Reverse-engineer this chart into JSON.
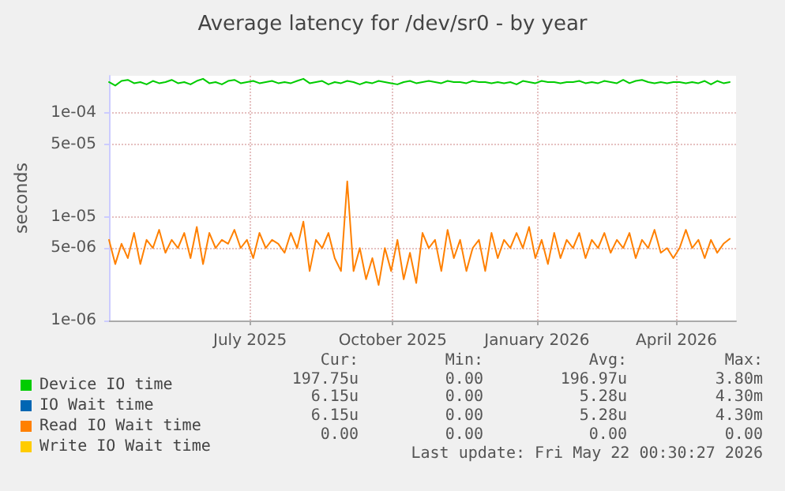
{
  "chart_data": {
    "type": "line",
    "title": "Average latency for /dev/sr0 - by year",
    "ylabel": "seconds",
    "log": "y",
    "grid": true,
    "legend": "bottom",
    "marker": "none",
    "line_style": "solid",
    "xlim": [
      "2025-04-17",
      "2026-05-22"
    ],
    "xticks": [
      {
        "value": "2025-07-16",
        "label": "July 2025"
      },
      {
        "value": "2025-10-15",
        "label": "October 2025"
      },
      {
        "value": "2026-01-15",
        "label": "January 2026"
      },
      {
        "value": "2026-04-14",
        "label": "April 2026"
      }
    ],
    "ylim": [
      1e-06,
      0.00023
    ],
    "yticks": [
      {
        "value": 1e-06,
        "label": "1e-06"
      },
      {
        "value": 5e-06,
        "label": "5e-06"
      },
      {
        "value": 1e-05,
        "label": "1e-05"
      },
      {
        "value": 5e-05,
        "label": "5e-05"
      },
      {
        "value": 0.0001,
        "label": "1e-04"
      }
    ],
    "x": [
      "2025-04-17",
      "2025-04-21",
      "2025-04-25",
      "2025-04-29",
      "2025-05-03",
      "2025-05-07",
      "2025-05-11",
      "2025-05-15",
      "2025-05-19",
      "2025-05-23",
      "2025-05-27",
      "2025-05-31",
      "2025-06-04",
      "2025-06-08",
      "2025-06-12",
      "2025-06-16",
      "2025-06-20",
      "2025-06-24",
      "2025-06-28",
      "2025-07-02",
      "2025-07-06",
      "2025-07-10",
      "2025-07-14",
      "2025-07-18",
      "2025-07-22",
      "2025-07-26",
      "2025-07-30",
      "2025-08-03",
      "2025-08-07",
      "2025-08-11",
      "2025-08-15",
      "2025-08-19",
      "2025-08-23",
      "2025-08-27",
      "2025-08-31",
      "2025-09-04",
      "2025-09-08",
      "2025-09-12",
      "2025-09-16",
      "2025-09-20",
      "2025-09-24",
      "2025-09-28",
      "2025-10-02",
      "2025-10-06",
      "2025-10-10",
      "2025-10-14",
      "2025-10-18",
      "2025-10-22",
      "2025-10-26",
      "2025-10-30",
      "2025-11-03",
      "2025-11-07",
      "2025-11-11",
      "2025-11-15",
      "2025-11-19",
      "2025-11-23",
      "2025-11-27",
      "2025-12-01",
      "2025-12-05",
      "2025-12-09",
      "2025-12-13",
      "2025-12-17",
      "2025-12-21",
      "2025-12-25",
      "2025-12-29",
      "2026-01-02",
      "2026-01-06",
      "2026-01-10",
      "2026-01-14",
      "2026-01-18",
      "2026-01-22",
      "2026-01-26",
      "2026-01-30",
      "2026-02-03",
      "2026-02-07",
      "2026-02-11",
      "2026-02-15",
      "2026-02-19",
      "2026-02-23",
      "2026-02-27",
      "2026-03-03",
      "2026-03-07",
      "2026-03-11",
      "2026-03-15",
      "2026-03-19",
      "2026-03-23",
      "2026-03-27",
      "2026-03-31",
      "2026-04-04",
      "2026-04-08",
      "2026-04-12",
      "2026-04-16",
      "2026-04-20",
      "2026-04-24",
      "2026-04-28",
      "2026-05-02",
      "2026-05-06",
      "2026-05-10",
      "2026-05-14",
      "2026-05-18"
    ],
    "series": [
      {
        "name": "Device IO time",
        "color": "#00cc00",
        "values": [
          0.0002,
          0.000185,
          0.000205,
          0.00021,
          0.000195,
          0.0002,
          0.00019,
          0.000205,
          0.000195,
          0.0002,
          0.00021,
          0.000195,
          0.0002,
          0.00019,
          0.000205,
          0.000215,
          0.000195,
          0.0002,
          0.00019,
          0.000205,
          0.00021,
          0.000195,
          0.0002,
          0.000205,
          0.000195,
          0.0002,
          0.000205,
          0.000195,
          0.0002,
          0.000195,
          0.000205,
          0.000215,
          0.000195,
          0.0002,
          0.000205,
          0.00019,
          0.0002,
          0.000195,
          0.000205,
          0.0002,
          0.00019,
          0.0002,
          0.000195,
          0.000205,
          0.0002,
          0.000195,
          0.00019,
          0.0002,
          0.000205,
          0.000195,
          0.0002,
          0.000205,
          0.0002,
          0.000195,
          0.000205,
          0.0002,
          0.0002,
          0.000195,
          0.000205,
          0.0002,
          0.0002,
          0.000195,
          0.0002,
          0.000195,
          0.0002,
          0.00019,
          0.000205,
          0.0002,
          0.000195,
          0.000205,
          0.0002,
          0.0002,
          0.000195,
          0.0002,
          0.0002,
          0.000205,
          0.000195,
          0.0002,
          0.000195,
          0.000205,
          0.0002,
          0.000195,
          0.00021,
          0.000195,
          0.000205,
          0.00021,
          0.0002,
          0.000195,
          0.0002,
          0.000195,
          0.0002,
          0.0002,
          0.000195,
          0.0002,
          0.000195,
          0.000205,
          0.00019,
          0.000205,
          0.000195,
          0.0002
        ]
      },
      {
        "name": "IO Wait time",
        "color": "#0066b3",
        "values": [
          null,
          null,
          null,
          null,
          null,
          null,
          null,
          null,
          null,
          null,
          null,
          null,
          null,
          null,
          null,
          null,
          null,
          null,
          null,
          null,
          null,
          null,
          null,
          null,
          null,
          null,
          null,
          null,
          null,
          null,
          null,
          null,
          null,
          null,
          null,
          null,
          null,
          null,
          null,
          null,
          null,
          null,
          null,
          null,
          null,
          null,
          null,
          null,
          null,
          null,
          null,
          null,
          null,
          null,
          null,
          null,
          null,
          null,
          null,
          null,
          null,
          null,
          null,
          null,
          null,
          null,
          null,
          null,
          null,
          null,
          null,
          null,
          null,
          null,
          null,
          null,
          null,
          null,
          null,
          null,
          null,
          null,
          null,
          null,
          null,
          null,
          null,
          null,
          null,
          null,
          null,
          null,
          null,
          null,
          null,
          null,
          null,
          null,
          null,
          null
        ]
      },
      {
        "name": "Read IO Wait time",
        "color": "#ff8000",
        "values": [
          6e-06,
          3.5e-06,
          5.5e-06,
          4e-06,
          7e-06,
          3.5e-06,
          6e-06,
          5e-06,
          7.5e-06,
          4.5e-06,
          6e-06,
          5e-06,
          7e-06,
          4e-06,
          8e-06,
          3.5e-06,
          7e-06,
          5e-06,
          6e-06,
          5.5e-06,
          7.5e-06,
          5e-06,
          6e-06,
          4e-06,
          7e-06,
          5e-06,
          6e-06,
          5.5e-06,
          4.5e-06,
          7e-06,
          5e-06,
          9e-06,
          3e-06,
          6e-06,
          5e-06,
          7e-06,
          4e-06,
          3e-06,
          2.2e-05,
          3e-06,
          5e-06,
          2.5e-06,
          4e-06,
          2.2e-06,
          5e-06,
          3e-06,
          6e-06,
          2.5e-06,
          4.5e-06,
          2.3e-06,
          7e-06,
          5e-06,
          6e-06,
          3e-06,
          7.5e-06,
          4e-06,
          6e-06,
          3e-06,
          5e-06,
          6e-06,
          3e-06,
          7e-06,
          4e-06,
          6e-06,
          5e-06,
          7e-06,
          5e-06,
          8e-06,
          4e-06,
          6e-06,
          3.5e-06,
          7e-06,
          4e-06,
          6e-06,
          5e-06,
          7e-06,
          4e-06,
          6e-06,
          5e-06,
          7e-06,
          4.5e-06,
          6e-06,
          5e-06,
          7e-06,
          4e-06,
          6e-06,
          5e-06,
          7.5e-06,
          4.5e-06,
          5e-06,
          4e-06,
          5e-06,
          7.5e-06,
          5e-06,
          6e-06,
          4e-06,
          6e-06,
          4.5e-06,
          5.5e-06,
          6.15e-06
        ]
      },
      {
        "name": "Write IO Wait time",
        "color": "#ffcc00",
        "values": [
          null,
          null,
          null,
          null,
          null,
          null,
          null,
          null,
          null,
          null,
          null,
          null,
          null,
          null,
          null,
          null,
          null,
          null,
          null,
          null,
          null,
          null,
          null,
          null,
          null,
          null,
          null,
          null,
          null,
          null,
          null,
          null,
          null,
          null,
          null,
          null,
          null,
          null,
          null,
          null,
          null,
          null,
          null,
          null,
          null,
          null,
          null,
          null,
          null,
          null,
          null,
          null,
          null,
          null,
          null,
          null,
          null,
          null,
          null,
          null,
          null,
          null,
          null,
          null,
          null,
          null,
          null,
          null,
          null,
          null,
          null,
          null,
          null,
          null,
          null,
          null,
          null,
          null,
          null,
          null,
          null,
          null,
          null,
          null,
          null,
          null,
          null,
          null,
          null,
          null,
          null,
          null,
          null,
          null,
          null,
          null,
          null,
          null,
          null,
          null
        ]
      }
    ],
    "annotations": [
      "Cur:",
      "Min:",
      "Avg:",
      "Max:",
      "197.75u",
      "0.00",
      "196.97u",
      "3.80m",
      "6.15u",
      "0.00",
      "5.28u",
      "4.30m",
      "6.15u",
      "0.00",
      "5.28u",
      "4.30m",
      "0.00",
      "0.00",
      "0.00",
      "0.00",
      "Last update: Fri May 22 00:30:27 2026"
    ]
  }
}
